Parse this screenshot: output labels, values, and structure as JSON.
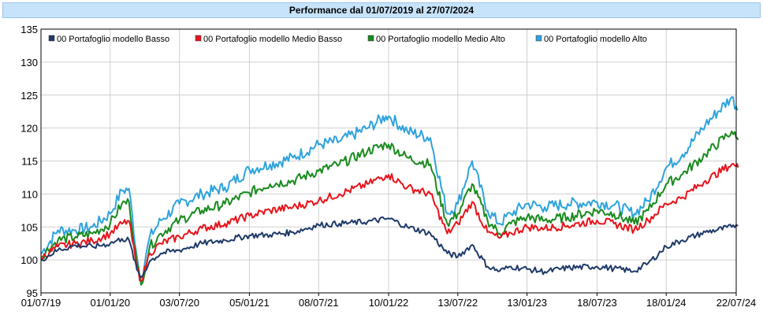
{
  "header": {
    "title": "Performance dal 01/07/2019 al 27/07/2024"
  },
  "chart_data": {
    "type": "line",
    "title": "Performance dal 01/07/2019 al 27/07/2024",
    "xlabel": "",
    "ylabel": "",
    "ylim": [
      95,
      135
    ],
    "yticks": [
      95,
      100,
      105,
      110,
      115,
      120,
      125,
      130,
      135
    ],
    "xticks": [
      "01/07/19",
      "01/01/20",
      "03/07/20",
      "05/01/21",
      "08/07/21",
      "10/01/22",
      "13/07/22",
      "13/01/23",
      "18/07/23",
      "18/01/24",
      "22/07/24"
    ],
    "x_tick_dates": [
      "2019-07-01",
      "2020-01-01",
      "2020-07-03",
      "2021-01-05",
      "2021-07-08",
      "2022-01-10",
      "2022-07-13",
      "2023-01-13",
      "2023-07-18",
      "2024-01-18",
      "2024-07-22"
    ],
    "grid": true,
    "legend_position": "top-left",
    "x": [
      "2019-07-01",
      "2019-08-15",
      "2019-10-01",
      "2019-11-15",
      "2020-01-01",
      "2020-02-01",
      "2020-02-20",
      "2020-03-12",
      "2020-03-23",
      "2020-04-15",
      "2020-05-15",
      "2020-07-03",
      "2020-09-01",
      "2020-11-01",
      "2021-01-05",
      "2021-03-01",
      "2021-05-01",
      "2021-07-08",
      "2021-09-01",
      "2021-11-15",
      "2022-01-03",
      "2022-01-10",
      "2022-03-01",
      "2022-05-01",
      "2022-06-15",
      "2022-07-13",
      "2022-08-20",
      "2022-09-30",
      "2022-11-01",
      "2022-12-01",
      "2023-01-13",
      "2023-03-01",
      "2023-05-01",
      "2023-07-18",
      "2023-09-01",
      "2023-10-25",
      "2023-12-01",
      "2024-01-18",
      "2024-03-01",
      "2024-05-01",
      "2024-07-10",
      "2024-07-22",
      "2024-07-27"
    ],
    "series": [
      {
        "name": "00 Portafoglio modello Basso",
        "color": "#1f3a68",
        "values": [
          100.0,
          101.5,
          102.2,
          102.0,
          102.5,
          103.2,
          103.0,
          98.5,
          97.3,
          99.8,
          101.0,
          101.5,
          102.5,
          103.0,
          103.7,
          103.8,
          104.2,
          105.3,
          105.5,
          105.8,
          106.2,
          106.3,
          105.0,
          104.0,
          101.0,
          100.5,
          102.3,
          99.0,
          98.3,
          99.0,
          98.6,
          98.2,
          98.8,
          99.0,
          98.7,
          98.3,
          99.5,
          102.0,
          103.0,
          104.2,
          105.0,
          105.3,
          105.2
        ]
      },
      {
        "name": "00 Portafoglio modello Medio Basso",
        "color": "#e8141b",
        "values": [
          100.3,
          102.0,
          102.5,
          102.9,
          104.0,
          105.5,
          105.9,
          98.8,
          96.8,
          101.0,
          102.5,
          103.5,
          104.8,
          105.5,
          106.7,
          107.5,
          108.0,
          109.0,
          110.0,
          111.5,
          112.8,
          112.9,
          111.0,
          110.0,
          104.0,
          105.5,
          108.8,
          104.2,
          103.3,
          104.1,
          105.0,
          104.8,
          105.2,
          106.0,
          105.5,
          104.6,
          106.0,
          108.5,
          109.5,
          112.0,
          114.5,
          114.2,
          114.0
        ]
      },
      {
        "name": "00 Portafoglio modello Medio Alto",
        "color": "#198a1e",
        "values": [
          100.6,
          103.0,
          103.5,
          104.0,
          105.5,
          108.5,
          108.8,
          99.5,
          96.2,
          102.0,
          104.0,
          106.0,
          107.5,
          108.5,
          110.2,
          111.5,
          112.0,
          113.5,
          114.5,
          116.5,
          117.5,
          117.5,
          115.5,
          114.5,
          105.5,
          107.0,
          111.5,
          106.0,
          104.0,
          105.5,
          106.5,
          106.0,
          106.5,
          107.5,
          107.0,
          105.5,
          107.5,
          111.5,
          113.0,
          116.0,
          119.5,
          118.5,
          118.2
        ]
      },
      {
        "name": "00 Portafoglio modello Alto",
        "color": "#2ea3dc",
        "values": [
          100.9,
          104.5,
          104.5,
          105.0,
          107.0,
          110.5,
          110.8,
          100.5,
          96.5,
          103.5,
          106.0,
          108.5,
          110.0,
          111.0,
          113.7,
          114.5,
          115.5,
          117.5,
          118.0,
          120.0,
          121.8,
          121.8,
          119.5,
          118.5,
          107.0,
          108.5,
          115.0,
          107.5,
          105.5,
          107.0,
          108.5,
          108.0,
          108.5,
          108.8,
          108.3,
          107.0,
          109.0,
          114.0,
          116.0,
          120.5,
          124.7,
          123.2,
          122.8
        ]
      }
    ]
  }
}
